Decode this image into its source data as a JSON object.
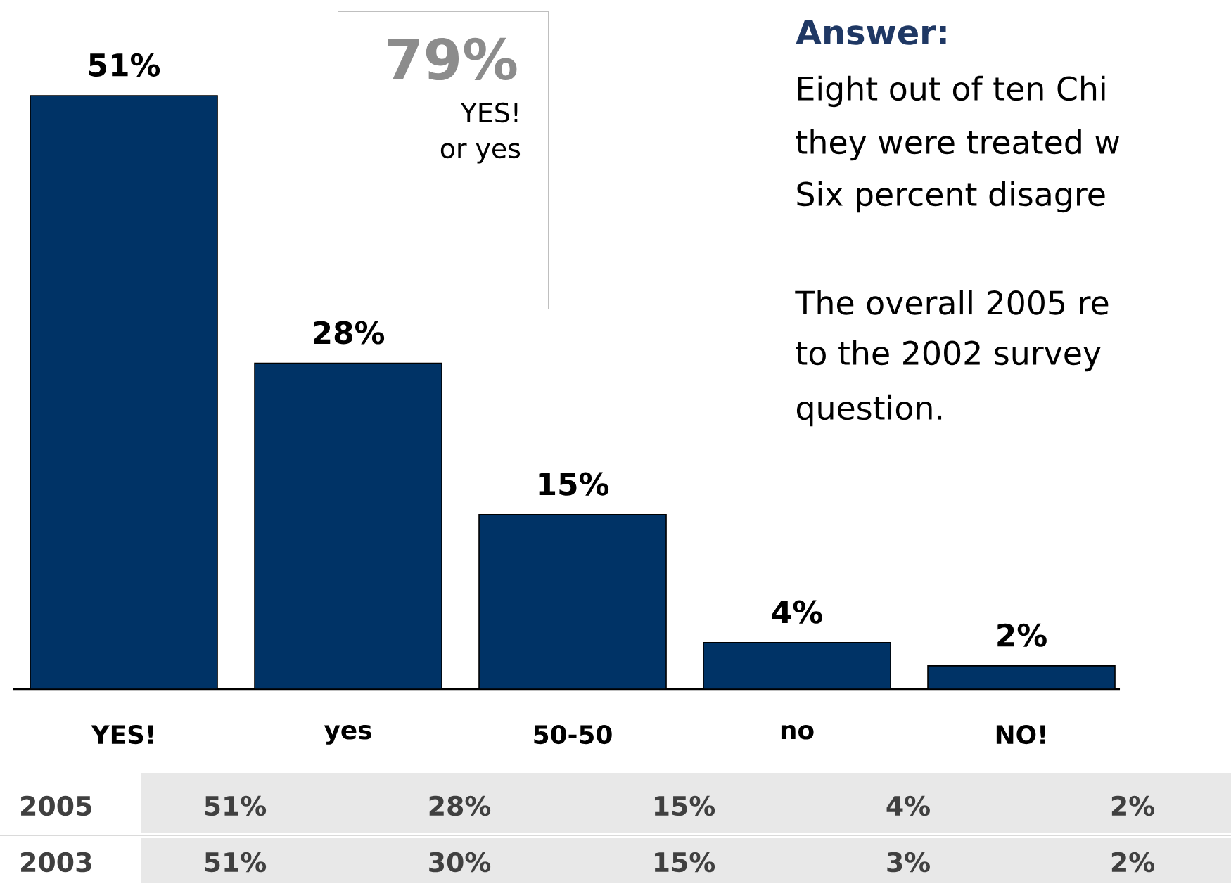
{
  "chart_data": {
    "type": "bar",
    "categories": [
      "YES!",
      "yes",
      "50-50",
      "no",
      "NO!"
    ],
    "series": [
      {
        "name": "2005",
        "color": "#003366",
        "values": [
          51,
          28,
          15,
          4,
          2
        ],
        "value_labels": [
          "51%",
          "28%",
          "15%",
          "4%",
          "2%"
        ]
      }
    ],
    "annotations": [
      "79%",
      "YES!",
      "or yes",
      "Answer:",
      "Eight out of ten Chi",
      "they were treated w",
      "Six percent disagre",
      "The overall 2005 re",
      "to the 2002 survey",
      "question.",
      "2003",
      "51%",
      "30%",
      "15%",
      "3%",
      "2%"
    ]
  }
}
